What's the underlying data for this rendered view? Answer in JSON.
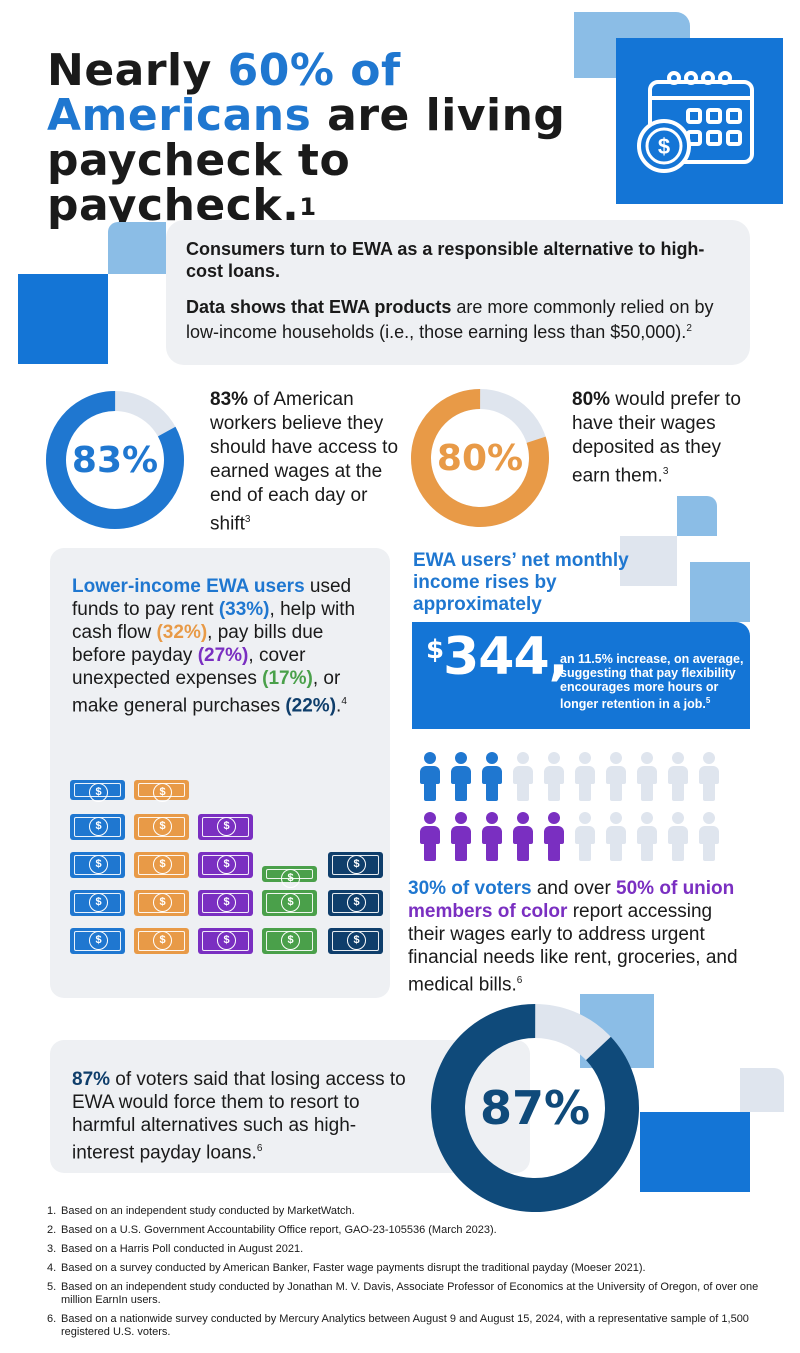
{
  "title": {
    "line1_a": "Nearly ",
    "line1_b": "60% of",
    "line2_a": "Americans",
    "line2_b": " are living",
    "line3": "paycheck to paycheck.",
    "footnote": "1"
  },
  "intro": {
    "p1": "Consumers turn to EWA as a responsible alternative to high-cost loans.",
    "p2_bold": "Data shows that EWA products",
    "p2_rest": " are more commonly relied on by low-income households (i.e., those earning less than $50,000).",
    "p2_footnote": "2"
  },
  "stat83": {
    "label": "83%",
    "value": 83,
    "bold": "83%",
    "text": " of American workers believe they should have access to earned wages at the end of each day or shift",
    "footnote": "3",
    "color": "#1f77d0"
  },
  "stat80": {
    "label": "80%",
    "value": 80,
    "bold": "80%",
    "text": " would prefer to have their wages deposited as they earn them.",
    "footnote": "3",
    "color": "#e89a47"
  },
  "lower_income": {
    "head": "Lower-income EWA users",
    "t1": " used funds to pay rent ",
    "v1": "(33%)",
    "t2": ", help with cash flow ",
    "v2": "(32%)",
    "t3": ", pay bills due before payday ",
    "v3": "(27%)",
    "t4": ", cover unexpected expenses ",
    "v4": "(17%)",
    "t5": ", or make general purchases ",
    "v5": "(22%)",
    "t6": ".",
    "footnote": "4"
  },
  "income_rise": {
    "head": "EWA users’ net monthly income rises by approximately",
    "currency": "$",
    "amount": "344,",
    "desc": "an 11.5% increase, on average, suggesting that pay flexibility encourages more hours or longer retention in a job.",
    "footnote": "5"
  },
  "people": {
    "row1_highlight": 3,
    "row2_highlight": 5,
    "per_row": 10
  },
  "voters": {
    "v1": "30% of voters",
    "t1": " and over ",
    "v2": "50% of union members of color",
    "t2": " report accessing their wages early to address urgent financial needs like rent, groceries, and medical bills.",
    "footnote": "6"
  },
  "stat87": {
    "label": "87%",
    "value": 87,
    "bold": "87%",
    "text": " of voters said that losing access to EWA would force them to resort to harmful alternatives such as high-interest payday loans.",
    "footnote": "6",
    "color": "#0f4a7a"
  },
  "footnotes": [
    {
      "n": "1.",
      "text": "Based on an independent study conducted by MarketWatch."
    },
    {
      "n": "2.",
      "text": "Based on a U.S. Government Accountability Office report, GAO-23-105536 (March 2023)."
    },
    {
      "n": "3.",
      "text": "Based on a Harris Poll conducted in August 2021."
    },
    {
      "n": "4.",
      "text": "Based on a survey conducted by American Banker, Faster wage payments disrupt the traditional payday (Moeser 2021)."
    },
    {
      "n": "5.",
      "text": "Based on an independent study conducted by Jonathan M. V. Davis, Associate Professor of Economics at the University of Oregon, of over one million EarnIn users."
    },
    {
      "n": "6.",
      "text": "Based on a nationwide survey conducted by Mercury Analytics between August 9 and August 15, 2024, with a representative sample of 1,500 registered U.S. voters."
    }
  ]
}
